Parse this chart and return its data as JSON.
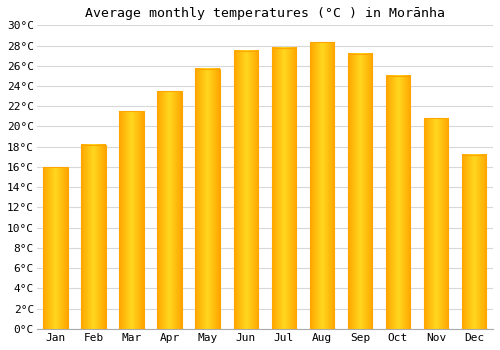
{
  "title": "Average monthly temperatures (°C ) in Morānha",
  "months": [
    "Jan",
    "Feb",
    "Mar",
    "Apr",
    "May",
    "Jun",
    "Jul",
    "Aug",
    "Sep",
    "Oct",
    "Nov",
    "Dec"
  ],
  "temperatures": [
    16.0,
    18.2,
    21.5,
    23.5,
    25.7,
    27.5,
    27.8,
    28.3,
    27.2,
    25.0,
    20.8,
    17.2
  ],
  "bar_color_left": "#FFA500",
  "bar_color_center": "#FFD050",
  "bar_color_right": "#FFA500",
  "background_color": "#FFFFFF",
  "grid_color": "#D8D8D8",
  "ylim": [
    0,
    30
  ],
  "yticks": [
    0,
    2,
    4,
    6,
    8,
    10,
    12,
    14,
    16,
    18,
    20,
    22,
    24,
    26,
    28,
    30
  ],
  "title_fontsize": 9.5,
  "tick_fontsize": 8,
  "font_family": "monospace"
}
